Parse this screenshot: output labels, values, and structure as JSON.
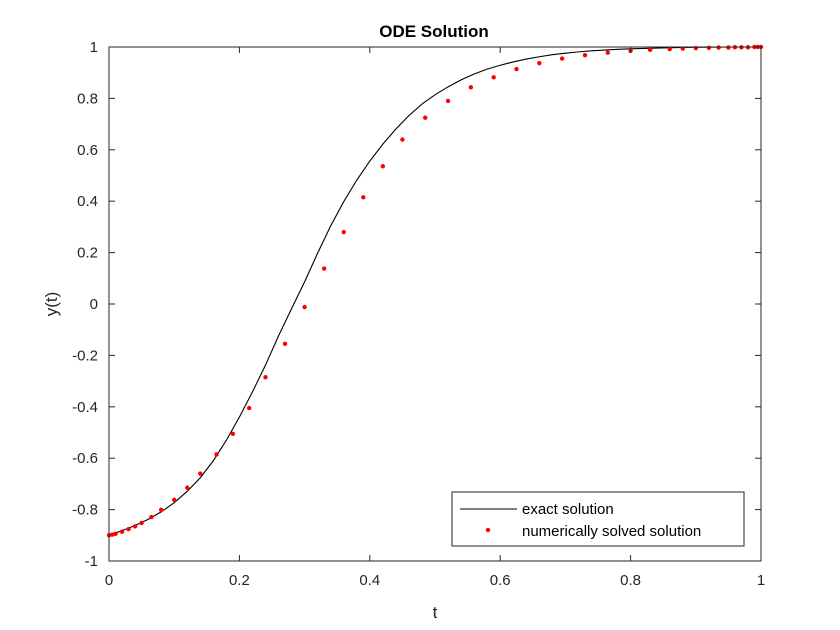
{
  "chart_data": {
    "type": "line",
    "title": "ODE Solution",
    "xlabel": "t",
    "ylabel": "y(t)",
    "xlim": [
      0,
      1
    ],
    "ylim": [
      -1,
      1
    ],
    "xticks": [
      0,
      0.2,
      0.4,
      0.6,
      0.8,
      1
    ],
    "xtick_labels": [
      "0",
      "0.2",
      "0.4",
      "0.6",
      "0.8",
      "1"
    ],
    "yticks": [
      -1,
      -0.8,
      -0.6,
      -0.4,
      -0.2,
      0,
      0.2,
      0.4,
      0.6,
      0.8,
      1
    ],
    "ytick_labels": [
      "-1",
      "-0.8",
      "-0.6",
      "-0.4",
      "-0.2",
      "0",
      "0.2",
      "0.4",
      "0.6",
      "0.8",
      "1"
    ],
    "grid": false,
    "legend_position": "bottom-right",
    "series": [
      {
        "name": "exact solution",
        "style": "line",
        "color": "#000000",
        "x": [
          0,
          0.02,
          0.04,
          0.06,
          0.08,
          0.1,
          0.12,
          0.14,
          0.16,
          0.18,
          0.2,
          0.22,
          0.24,
          0.26,
          0.28,
          0.3,
          0.32,
          0.34,
          0.36,
          0.38,
          0.4,
          0.42,
          0.44,
          0.46,
          0.48,
          0.5,
          0.52,
          0.54,
          0.56,
          0.58,
          0.6,
          0.62,
          0.64,
          0.66,
          0.68,
          0.7,
          0.72,
          0.74,
          0.76,
          0.78,
          0.8,
          0.84,
          0.88,
          0.92,
          0.96,
          1.0
        ],
        "y": [
          -0.9,
          -0.882,
          -0.862,
          -0.838,
          -0.809,
          -0.773,
          -0.729,
          -0.676,
          -0.61,
          -0.53,
          -0.44,
          -0.342,
          -0.238,
          -0.124,
          -0.018,
          0.086,
          0.198,
          0.304,
          0.398,
          0.482,
          0.556,
          0.622,
          0.681,
          0.733,
          0.778,
          0.814,
          0.845,
          0.872,
          0.895,
          0.914,
          0.929,
          0.942,
          0.953,
          0.962,
          0.97,
          0.976,
          0.981,
          0.985,
          0.988,
          0.991,
          0.993,
          0.996,
          0.998,
          0.999,
          1.0,
          1.0
        ]
      },
      {
        "name": "numerically solved solution",
        "style": "markers",
        "color": "#ff0000",
        "x": [
          0,
          0.005,
          0.01,
          0.02,
          0.03,
          0.04,
          0.05,
          0.065,
          0.08,
          0.1,
          0.12,
          0.14,
          0.165,
          0.19,
          0.215,
          0.24,
          0.27,
          0.3,
          0.33,
          0.36,
          0.39,
          0.42,
          0.45,
          0.485,
          0.52,
          0.555,
          0.59,
          0.625,
          0.66,
          0.695,
          0.73,
          0.765,
          0.8,
          0.83,
          0.86,
          0.88,
          0.9,
          0.92,
          0.935,
          0.95,
          0.96,
          0.97,
          0.98,
          0.99,
          0.995,
          1.0
        ],
        "y": [
          -0.9,
          -0.897,
          -0.894,
          -0.886,
          -0.876,
          -0.865,
          -0.852,
          -0.829,
          -0.801,
          -0.762,
          -0.715,
          -0.66,
          -0.585,
          -0.505,
          -0.405,
          -0.285,
          -0.155,
          -0.012,
          0.138,
          0.28,
          0.415,
          0.536,
          0.64,
          0.725,
          0.79,
          0.843,
          0.882,
          0.914,
          0.937,
          0.955,
          0.968,
          0.978,
          0.985,
          0.989,
          0.992,
          0.994,
          0.996,
          0.997,
          0.998,
          0.998,
          0.999,
          0.999,
          0.999,
          1.0,
          1.0,
          1.0
        ]
      }
    ]
  }
}
